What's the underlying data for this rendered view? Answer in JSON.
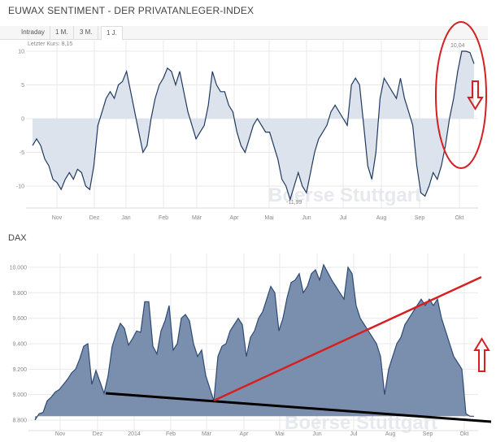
{
  "header": {
    "title": "EUWAX SENTIMENT - DER PRIVATANLEGER-INDEX",
    "tabs": [
      "Intraday",
      "1 M.",
      "3 M.",
      "1 J."
    ],
    "active_tab": "1 J.",
    "last_price": "Letzter Kurs: 8,15"
  },
  "chart_data": [
    {
      "type": "area",
      "title": "EUWAX SENTIMENT - DER PRIVATANLEGER-INDEX",
      "ylim": [
        -12,
        10.5
      ],
      "yticks": [
        "10",
        "5",
        "0",
        "-5",
        "-10"
      ],
      "ytick_values": [
        10,
        5,
        0,
        -5,
        -10
      ],
      "xticks": [
        "Nov",
        "Dez",
        "Jan",
        "Feb",
        "Mär",
        "Apr",
        "Mai",
        "Jun",
        "Jul",
        "Aug",
        "Sep",
        "Okt"
      ],
      "annotations": {
        "max": "10,04",
        "min": "-11,99"
      },
      "line_color": "#1f3a60",
      "fill_color": "#dde3ec",
      "values": [
        -4,
        -3,
        -4,
        -6,
        -7,
        -9,
        -9.5,
        -10.5,
        -9,
        -8,
        -9,
        -7.5,
        -8,
        -10,
        -10.5,
        -7,
        -1,
        1,
        3,
        4,
        3,
        5,
        5.5,
        7,
        4,
        1,
        -2,
        -5,
        -4,
        0,
        3,
        5,
        6,
        7.5,
        7,
        5,
        7,
        4,
        1,
        -1,
        -3,
        -2,
        -1,
        2,
        7,
        5,
        4,
        4,
        2,
        1,
        -2,
        -4,
        -5,
        -3,
        -1,
        0,
        -1,
        -2,
        -2,
        -4,
        -6,
        -9,
        -10,
        -12,
        -10,
        -8,
        -10,
        -11,
        -8,
        -5,
        -3,
        -2,
        -1,
        1,
        2,
        1,
        0,
        -1,
        5,
        6,
        5,
        -1,
        -7,
        -9,
        -5,
        3,
        6,
        5,
        4,
        3,
        6,
        3,
        1,
        -1,
        -7,
        -11,
        -11.5,
        -10,
        -8,
        -9,
        -7,
        -4,
        0,
        3,
        7,
        10,
        10,
        9.8,
        8.15
      ]
    },
    {
      "type": "area",
      "title": "DAX",
      "ylim": [
        8780,
        10080
      ],
      "yticks": [
        "10.000",
        "9.800",
        "9.600",
        "9.400",
        "9.200",
        "9.000",
        "8.800"
      ],
      "ytick_values": [
        10000,
        9800,
        9600,
        9400,
        9200,
        9000,
        8800
      ],
      "xticks": [
        "Nov",
        "Dez",
        "2014",
        "Feb",
        "Mär",
        "Apr",
        "Mai",
        "Jun",
        "Jul",
        "Aug",
        "Sep",
        "Okt"
      ],
      "line_color": "#2d4a75",
      "fill_color": "#7a8fae",
      "values": [
        8800,
        8850,
        8860,
        8950,
        8980,
        9020,
        9040,
        9080,
        9120,
        9170,
        9200,
        9280,
        9380,
        9400,
        9080,
        9190,
        9100,
        9010,
        9150,
        9380,
        9480,
        9560,
        9520,
        9390,
        9440,
        9500,
        9490,
        9730,
        9730,
        9380,
        9320,
        9500,
        9580,
        9700,
        9350,
        9400,
        9600,
        9630,
        9580,
        9400,
        9300,
        9350,
        9150,
        9050,
        8950,
        9300,
        9380,
        9400,
        9500,
        9550,
        9600,
        9550,
        9300,
        9450,
        9500,
        9600,
        9650,
        9750,
        9850,
        9800,
        9500,
        9600,
        9760,
        9880,
        9900,
        9950,
        9800,
        9850,
        9950,
        9980,
        9900,
        10020,
        9960,
        9900,
        9850,
        9800,
        9750,
        10000,
        9950,
        9700,
        9600,
        9550,
        9500,
        9450,
        9400,
        9300,
        9000,
        9200,
        9300,
        9400,
        9450,
        9550,
        9600,
        9650,
        9700,
        9750,
        9700,
        9750,
        9700,
        9750,
        9600,
        9500,
        9400,
        9300,
        9250,
        9200,
        8850,
        8830,
        8830
      ]
    }
  ],
  "watermark": "Boerse Stuttgart",
  "overlay_colors": {
    "red": "#d42020",
    "black": "#000000"
  }
}
